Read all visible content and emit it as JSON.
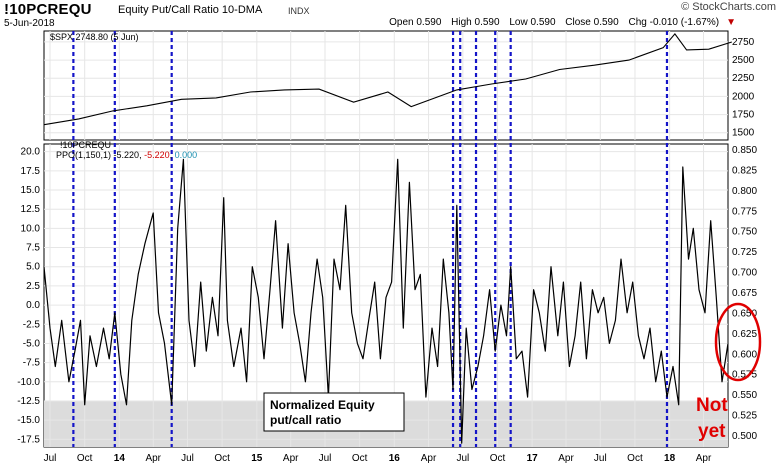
{
  "header": {
    "symbol": "!10PCREQU",
    "description": "Equity Put/Call Ratio 10-DMA",
    "exchange": "INDX",
    "date": "5-Jun-2018",
    "open_label": "Open",
    "open": "0.590",
    "high_label": "High",
    "high": "0.590",
    "low_label": "Low",
    "low": "0.590",
    "close_label": "Close",
    "close": "0.590",
    "chg_label": "Chg",
    "chg": "-0.010 (-1.67%)",
    "brand": "© StockCharts.com"
  },
  "chart_data": [
    {
      "type": "line",
      "panel": "upper",
      "label": "$SPX 2748.80 (5 Jun)",
      "ylim": [
        1400,
        2900
      ],
      "yticks": [
        1500,
        1750,
        2000,
        2250,
        2500,
        2750
      ],
      "x_start": "2013-06-15",
      "x_end": "2018-06-05",
      "series": [
        {
          "name": "$SPX",
          "x": [
            "2013-06",
            "2013-09",
            "2013-12",
            "2014-03",
            "2014-06",
            "2014-09",
            "2014-12",
            "2015-03",
            "2015-06",
            "2015-09",
            "2015-12",
            "2016-02",
            "2016-06",
            "2016-09",
            "2016-12",
            "2017-03",
            "2017-06",
            "2017-09",
            "2017-12",
            "2018-01",
            "2018-02",
            "2018-04",
            "2018-06"
          ],
          "values": [
            1610,
            1690,
            1800,
            1870,
            1960,
            1980,
            2060,
            2090,
            2100,
            1920,
            2060,
            1860,
            2090,
            2170,
            2240,
            2370,
            2430,
            2500,
            2670,
            2860,
            2640,
            2650,
            2748
          ]
        }
      ]
    },
    {
      "type": "line",
      "panel": "lower",
      "label": "!10PCREQU",
      "indicator": "PPO(1,150,1) -5.220, -5.220, 0.000",
      "indicator_name": "PPO(1,150,1)",
      "indicator_value": "-5.220",
      "signal_value": "-5.220",
      "hist_value": "0.000",
      "left_ylim": [
        -18.5,
        21
      ],
      "left_yticks": [
        "20.0",
        "17.5",
        "15.0",
        "12.5",
        "10.0",
        "7.5",
        "5.0",
        "2.5",
        "0.0",
        "-2.5",
        "-5.0",
        "-7.5",
        "-10.0",
        "-12.5",
        "-15.0",
        "-17.5"
      ],
      "right_yticks": [
        "0.850",
        "0.825",
        "0.800",
        "0.775",
        "0.750",
        "0.725",
        "0.700",
        "0.675",
        "0.650",
        "0.625",
        "0.600",
        "0.575",
        "0.550",
        "0.525",
        "0.500"
      ],
      "shaded_below": -12.5,
      "series": [
        {
          "name": "PPO",
          "x": [
            "2013-06-15",
            "2013-07-01",
            "2013-07-15",
            "2013-08-01",
            "2013-08-20",
            "2013-09-05",
            "2013-09-20",
            "2013-10-01",
            "2013-10-15",
            "2013-11-01",
            "2013-11-20",
            "2013-12-05",
            "2013-12-20",
            "2014-01-05",
            "2014-01-20",
            "2014-02-03",
            "2014-02-20",
            "2014-03-10",
            "2014-04-01",
            "2014-04-15",
            "2014-05-01",
            "2014-05-20",
            "2014-06-05",
            "2014-06-20",
            "2014-07-05",
            "2014-07-20",
            "2014-08-05",
            "2014-08-20",
            "2014-09-05",
            "2014-09-20",
            "2014-10-05",
            "2014-10-15",
            "2014-11-01",
            "2014-11-20",
            "2014-12-05",
            "2014-12-20",
            "2015-01-05",
            "2015-01-20",
            "2015-02-05",
            "2015-02-20",
            "2015-03-10",
            "2015-03-25",
            "2015-04-10",
            "2015-04-25",
            "2015-05-10",
            "2015-05-25",
            "2015-06-10",
            "2015-06-25",
            "2015-07-10",
            "2015-07-25",
            "2015-08-10",
            "2015-08-25",
            "2015-09-10",
            "2015-09-25",
            "2015-10-10",
            "2015-10-25",
            "2015-11-10",
            "2015-11-25",
            "2015-12-10",
            "2015-12-25",
            "2016-01-10",
            "2016-01-25",
            "2016-02-10",
            "2016-02-25",
            "2016-03-10",
            "2016-03-25",
            "2016-04-10",
            "2016-04-25",
            "2016-05-10",
            "2016-05-25",
            "2016-06-05",
            "2016-06-15",
            "2016-06-28",
            "2016-07-10",
            "2016-07-25",
            "2016-08-10",
            "2016-08-25",
            "2016-09-10",
            "2016-09-25",
            "2016-10-10",
            "2016-10-25",
            "2016-11-05",
            "2016-11-20",
            "2016-12-05",
            "2016-12-20",
            "2017-01-05",
            "2017-01-20",
            "2017-02-05",
            "2017-02-20",
            "2017-03-10",
            "2017-03-25",
            "2017-04-10",
            "2017-04-25",
            "2017-05-10",
            "2017-05-25",
            "2017-06-10",
            "2017-06-25",
            "2017-07-10",
            "2017-07-25",
            "2017-08-10",
            "2017-08-25",
            "2017-09-10",
            "2017-09-25",
            "2017-10-10",
            "2017-10-25",
            "2017-11-10",
            "2017-11-25",
            "2017-12-10",
            "2017-12-25",
            "2018-01-10",
            "2018-01-25",
            "2018-02-05",
            "2018-02-20",
            "2018-03-05",
            "2018-03-20",
            "2018-04-05",
            "2018-04-20",
            "2018-05-05",
            "2018-05-20",
            "2018-06-05"
          ],
          "values": [
            5,
            -3,
            -8,
            -2,
            -10,
            -6,
            -2,
            -13,
            -4,
            -8,
            -3,
            -7,
            -1,
            -9,
            -13,
            -2,
            4,
            8,
            12,
            -1,
            -5,
            -13,
            10,
            19,
            -2,
            -8,
            3,
            -6,
            1,
            -4,
            14,
            -2,
            -8,
            -3,
            -10,
            5,
            1,
            -7,
            2,
            11,
            -3,
            8,
            -1,
            -5,
            -10,
            -1,
            6,
            1,
            -12,
            6,
            2,
            13,
            -1,
            -5,
            -7,
            -2,
            3,
            -7,
            1,
            3,
            19,
            -3,
            16,
            2,
            4,
            -12,
            -3,
            -8,
            6,
            -1,
            -11,
            13,
            -18,
            -3,
            -11,
            -8,
            -4,
            2,
            -6,
            0,
            -4,
            5,
            -7,
            -6,
            -12,
            2,
            -1,
            -6,
            5,
            -4,
            3,
            -8,
            -4,
            3,
            -7,
            2,
            -1,
            1,
            -5,
            -2,
            6,
            -1,
            3,
            -4,
            -7,
            -3,
            -10,
            -6,
            -12,
            -8,
            -13,
            18,
            6,
            10,
            2,
            -1,
            11,
            1,
            -10,
            -5
          ]
        }
      ]
    }
  ],
  "x_axis": {
    "ticks": [
      {
        "label": "Jul",
        "date": "2013-07-01"
      },
      {
        "label": "Oct",
        "date": "2013-10-01"
      },
      {
        "label": "14",
        "date": "2014-01-01",
        "bold": true
      },
      {
        "label": "Apr",
        "date": "2014-04-01"
      },
      {
        "label": "Jul",
        "date": "2014-07-01"
      },
      {
        "label": "Oct",
        "date": "2014-10-01"
      },
      {
        "label": "15",
        "date": "2015-01-01",
        "bold": true
      },
      {
        "label": "Apr",
        "date": "2015-04-01"
      },
      {
        "label": "Jul",
        "date": "2015-07-01"
      },
      {
        "label": "Oct",
        "date": "2015-10-01"
      },
      {
        "label": "16",
        "date": "2016-01-01",
        "bold": true
      },
      {
        "label": "Apr",
        "date": "2016-04-01"
      },
      {
        "label": "Jul",
        "date": "2016-07-01"
      },
      {
        "label": "Oct",
        "date": "2016-10-01"
      },
      {
        "label": "17",
        "date": "2017-01-01",
        "bold": true
      },
      {
        "label": "Apr",
        "date": "2017-04-01"
      },
      {
        "label": "Jul",
        "date": "2017-07-01"
      },
      {
        "label": "Oct",
        "date": "2017-10-01"
      },
      {
        "label": "18",
        "date": "2018-01-01",
        "bold": true
      },
      {
        "label": "Apr",
        "date": "2018-04-01"
      }
    ]
  },
  "annotations": {
    "signal_dates": [
      "2013-09-01",
      "2013-12-20",
      "2014-05-20",
      "2016-06-05",
      "2016-06-24",
      "2016-08-05",
      "2016-09-25",
      "2016-11-05",
      "2017-12-25"
    ],
    "signal_color": "#1414c8",
    "box_label_1": "Normalized Equity",
    "box_label_2": "put/call ratio",
    "callout_1": "Not",
    "callout_2": "yet",
    "callout_color": "#e00000"
  }
}
